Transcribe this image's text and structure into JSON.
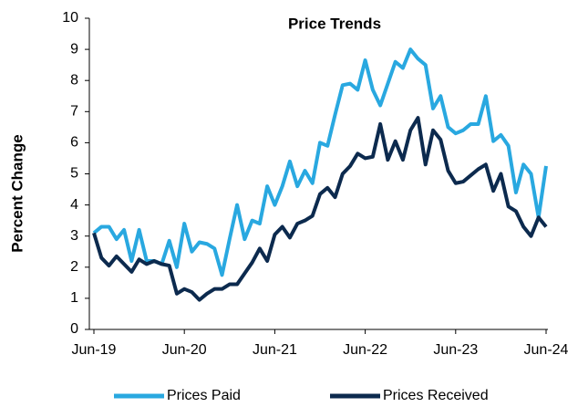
{
  "chart_data": {
    "type": "line",
    "title": "Price Trends",
    "y_label": "Percent Change",
    "categories": [
      "Jun-19",
      null,
      null,
      null,
      null,
      null,
      null,
      null,
      null,
      null,
      null,
      null,
      "Jun-20",
      null,
      null,
      null,
      null,
      null,
      null,
      null,
      null,
      null,
      null,
      null,
      "Jun-21",
      null,
      null,
      null,
      null,
      null,
      null,
      null,
      null,
      null,
      null,
      null,
      "Jun-22",
      null,
      null,
      null,
      null,
      null,
      null,
      null,
      null,
      null,
      null,
      null,
      "Jun-23",
      null,
      null,
      null,
      null,
      null,
      null,
      null,
      null,
      null,
      null,
      null,
      "Jun-24"
    ],
    "series": [
      {
        "name": "Prices Paid",
        "color": "#29a8e0",
        "values": [
          3.1,
          3.3,
          3.3,
          2.9,
          3.2,
          2.2,
          3.2,
          2.2,
          2.2,
          2.1,
          2.85,
          2.0,
          3.4,
          2.5,
          2.8,
          2.75,
          2.6,
          1.75,
          2.9,
          4.0,
          2.9,
          3.5,
          3.4,
          4.6,
          4.0,
          4.6,
          5.4,
          4.6,
          5.1,
          4.7,
          6.0,
          5.9,
          6.9,
          7.85,
          7.9,
          7.7,
          8.65,
          7.7,
          7.2,
          7.9,
          8.6,
          8.4,
          9.0,
          8.7,
          8.5,
          7.1,
          7.5,
          6.5,
          6.3,
          6.4,
          6.6,
          6.6,
          7.5,
          6.05,
          6.25,
          5.9,
          4.4,
          5.3,
          5.0,
          3.6,
          5.25
        ]
      },
      {
        "name": "Prices Received",
        "color": "#0c2a4e",
        "values": [
          3.1,
          2.3,
          2.05,
          2.35,
          2.1,
          1.85,
          2.25,
          2.1,
          2.2,
          2.1,
          2.05,
          1.15,
          1.3,
          1.2,
          0.95,
          1.15,
          1.3,
          1.3,
          1.45,
          1.45,
          1.8,
          2.15,
          2.6,
          2.2,
          3.05,
          3.3,
          2.95,
          3.4,
          3.5,
          3.65,
          4.35,
          4.55,
          4.25,
          5.0,
          5.25,
          5.65,
          5.5,
          5.55,
          6.6,
          5.45,
          6.05,
          5.45,
          6.4,
          6.8,
          5.3,
          6.4,
          6.1,
          5.1,
          4.7,
          4.75,
          4.95,
          5.15,
          5.3,
          4.45,
          5.0,
          3.95,
          3.8,
          3.3,
          3.0,
          3.6,
          3.3
        ]
      }
    ],
    "ylim": [
      0,
      10
    ],
    "yticks": [
      0,
      1,
      2,
      3,
      4,
      5,
      6,
      7,
      8,
      9,
      10
    ],
    "legend": "bottom"
  }
}
